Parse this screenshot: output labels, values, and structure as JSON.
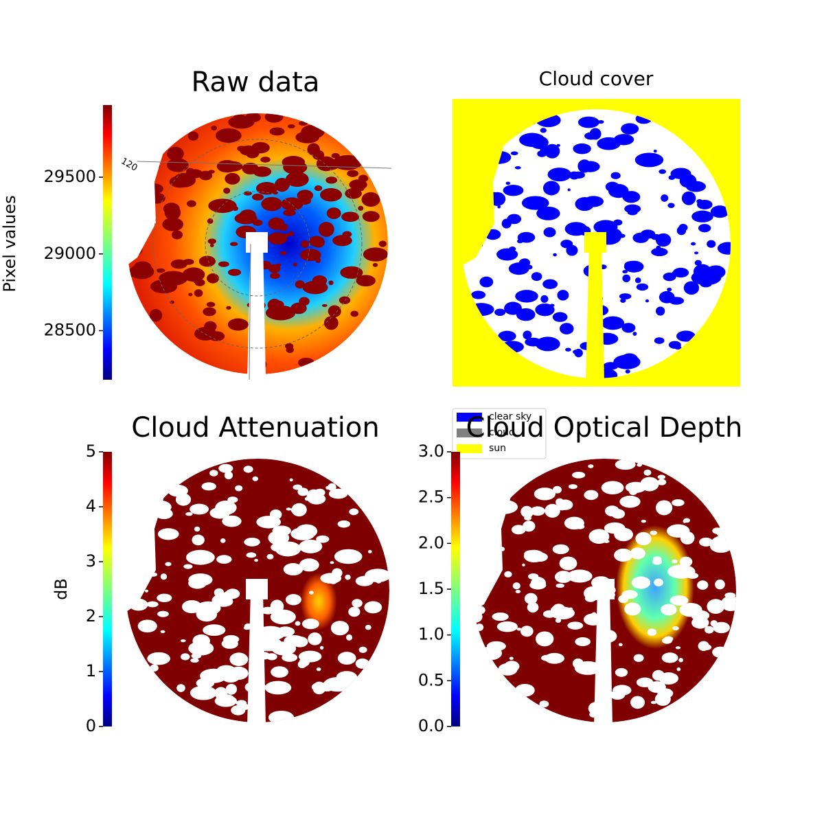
{
  "chart_data": [
    {
      "type": "image",
      "title": "Raw data",
      "cmap": "jet",
      "colorbar": {
        "label": "Pixel values",
        "lim": [
          28180,
          29970
        ],
        "ticks": [
          28500,
          29000,
          29500
        ]
      },
      "annotations": [
        "120"
      ]
    },
    {
      "type": "image",
      "title": "Cloud cover",
      "legend": {
        "position": "lower left",
        "entries": [
          {
            "name": "clear sky",
            "color": "#0000ff"
          },
          {
            "name": "cloud",
            "color": "#808080"
          },
          {
            "name": "sun",
            "color": "#ffff00"
          }
        ]
      }
    },
    {
      "type": "image",
      "title": "Cloud Attenuation",
      "cmap": "jet",
      "colorbar": {
        "label": "dB",
        "lim": [
          0,
          5
        ],
        "ticks": [
          0,
          1,
          2,
          3,
          4,
          5
        ]
      }
    },
    {
      "type": "image",
      "title": "Cloud Optical Depth",
      "cmap": "jet",
      "colorbar": {
        "lim": [
          0,
          3
        ],
        "ticks": [
          {
            "value": 0,
            "label": "0.0"
          },
          0.5,
          {
            "value": 1,
            "label": "1.0"
          },
          1.5,
          {
            "value": 2,
            "label": "2.0"
          },
          2.5,
          {
            "value": 3,
            "label": "3.0"
          }
        ]
      }
    }
  ]
}
